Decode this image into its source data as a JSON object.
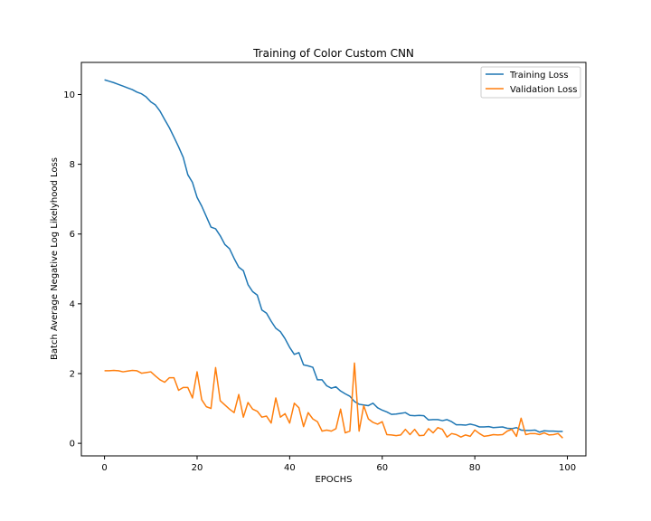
{
  "chart_data": {
    "type": "line",
    "title": "Training of Color Custom CNN",
    "xlabel": "EPOCHS",
    "ylabel": "Batch Average Negative Log Likelyhood Loss",
    "xlim": [
      -5,
      104
    ],
    "ylim": [
      -0.36,
      10.92
    ],
    "xticks": [
      0,
      20,
      40,
      60,
      80,
      100
    ],
    "yticks": [
      0,
      2,
      4,
      6,
      8,
      10
    ],
    "grid": false,
    "legend_position": "top-right",
    "colors": {
      "training": "#1f77b4",
      "validation": "#ff7f0e"
    },
    "x": [
      0,
      1,
      2,
      3,
      4,
      5,
      6,
      7,
      8,
      9,
      10,
      11,
      12,
      13,
      14,
      15,
      16,
      17,
      18,
      19,
      20,
      21,
      22,
      23,
      24,
      25,
      26,
      27,
      28,
      29,
      30,
      31,
      32,
      33,
      34,
      35,
      36,
      37,
      38,
      39,
      40,
      41,
      42,
      43,
      44,
      45,
      46,
      47,
      48,
      49,
      50,
      51,
      52,
      53,
      54,
      55,
      56,
      57,
      58,
      59,
      60,
      61,
      62,
      63,
      64,
      65,
      66,
      67,
      68,
      69,
      70,
      71,
      72,
      73,
      74,
      75,
      76,
      77,
      78,
      79,
      80,
      81,
      82,
      83,
      84,
      85,
      86,
      87,
      88,
      89,
      90,
      91,
      92,
      93,
      94,
      95,
      96,
      97,
      98,
      99
    ],
    "series": [
      {
        "name": "Training Loss",
        "values": [
          10.42,
          10.38,
          10.34,
          10.29,
          10.24,
          10.19,
          10.14,
          10.07,
          10.02,
          9.93,
          9.79,
          9.7,
          9.52,
          9.28,
          9.05,
          8.78,
          8.5,
          8.2,
          7.7,
          7.48,
          7.05,
          6.8,
          6.5,
          6.2,
          6.15,
          5.95,
          5.7,
          5.58,
          5.3,
          5.05,
          4.95,
          4.55,
          4.35,
          4.25,
          3.82,
          3.73,
          3.5,
          3.3,
          3.2,
          3.0,
          2.75,
          2.55,
          2.6,
          2.25,
          2.22,
          2.18,
          1.82,
          1.82,
          1.65,
          1.58,
          1.62,
          1.5,
          1.42,
          1.35,
          1.2,
          1.12,
          1.1,
          1.08,
          1.15,
          1.02,
          0.95,
          0.9,
          0.83,
          0.84,
          0.86,
          0.88,
          0.8,
          0.79,
          0.8,
          0.79,
          0.67,
          0.68,
          0.68,
          0.65,
          0.68,
          0.62,
          0.53,
          0.53,
          0.52,
          0.55,
          0.52,
          0.47,
          0.47,
          0.48,
          0.45,
          0.46,
          0.47,
          0.43,
          0.42,
          0.45,
          0.38,
          0.37,
          0.37,
          0.38,
          0.32,
          0.36,
          0.35,
          0.35,
          0.34,
          0.34
        ]
      },
      {
        "name": "Validation Loss",
        "values": [
          2.08,
          2.08,
          2.09,
          2.08,
          2.05,
          2.07,
          2.09,
          2.08,
          2.01,
          2.03,
          2.05,
          1.93,
          1.82,
          1.75,
          1.88,
          1.88,
          1.52,
          1.6,
          1.6,
          1.3,
          2.05,
          1.25,
          1.05,
          1.0,
          2.17,
          1.22,
          1.1,
          0.98,
          0.88,
          1.4,
          0.75,
          1.17,
          0.98,
          0.92,
          0.75,
          0.78,
          0.58,
          1.3,
          0.75,
          0.85,
          0.58,
          1.15,
          1.02,
          0.48,
          0.88,
          0.7,
          0.62,
          0.35,
          0.38,
          0.35,
          0.42,
          0.98,
          0.3,
          0.35,
          2.3,
          0.35,
          1.08,
          0.7,
          0.6,
          0.55,
          0.62,
          0.25,
          0.24,
          0.22,
          0.24,
          0.4,
          0.25,
          0.4,
          0.22,
          0.23,
          0.42,
          0.3,
          0.45,
          0.4,
          0.18,
          0.28,
          0.25,
          0.18,
          0.24,
          0.2,
          0.38,
          0.28,
          0.2,
          0.22,
          0.25,
          0.24,
          0.25,
          0.35,
          0.4,
          0.2,
          0.72,
          0.25,
          0.28,
          0.28,
          0.25,
          0.3,
          0.24,
          0.25,
          0.28,
          0.15
        ]
      }
    ]
  }
}
